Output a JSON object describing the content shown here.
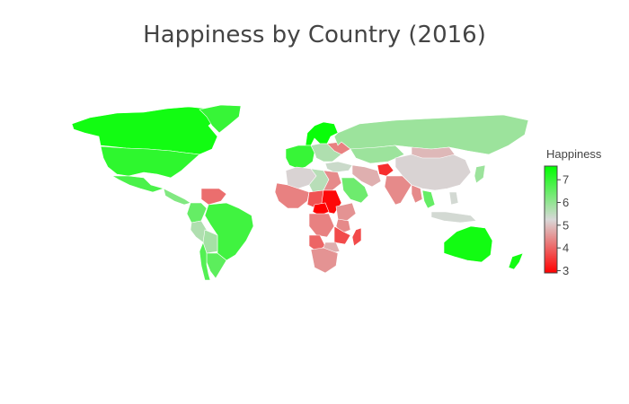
{
  "chart_data": {
    "type": "choropleth",
    "title": "Happiness by Country (2016)",
    "colorbar": {
      "title": "Happiness",
      "ticks": [
        3,
        4,
        5,
        6,
        7
      ],
      "range": [
        2.9,
        7.6
      ],
      "colorscale": [
        [
          0.0,
          "#ff0000"
        ],
        [
          0.5,
          "#d8d8d8"
        ],
        [
          1.0,
          "#00ff00"
        ]
      ]
    },
    "regions": [
      {
        "name": "Canada",
        "value": 7.4
      },
      {
        "name": "United States",
        "value": 7.1
      },
      {
        "name": "Mexico",
        "value": 6.8
      },
      {
        "name": "Greenland",
        "value": 7.0
      },
      {
        "name": "Central America",
        "value": 6.2
      },
      {
        "name": "Colombia",
        "value": 6.5
      },
      {
        "name": "Venezuela",
        "value": 4.1
      },
      {
        "name": "Brazil",
        "value": 6.9
      },
      {
        "name": "Peru",
        "value": 5.7
      },
      {
        "name": "Bolivia",
        "value": 5.8
      },
      {
        "name": "Argentina",
        "value": 6.6
      },
      {
        "name": "Chile",
        "value": 6.7
      },
      {
        "name": "Scandinavia",
        "value": 7.5
      },
      {
        "name": "Western Europe",
        "value": 7.0
      },
      {
        "name": "Eastern Europe",
        "value": 5.7
      },
      {
        "name": "Ukraine",
        "value": 4.3
      },
      {
        "name": "Russia",
        "value": 5.9
      },
      {
        "name": "Kazakhstan",
        "value": 5.9
      },
      {
        "name": "Turkey",
        "value": 5.4
      },
      {
        "name": "Iran",
        "value": 4.8
      },
      {
        "name": "Saudi Arabia",
        "value": 6.4
      },
      {
        "name": "Afghanistan",
        "value": 3.4
      },
      {
        "name": "India",
        "value": 4.4
      },
      {
        "name": "China",
        "value": 5.2
      },
      {
        "name": "Mongolia",
        "value": 4.9
      },
      {
        "name": "Japan",
        "value": 5.9
      },
      {
        "name": "Myanmar",
        "value": 4.4
      },
      {
        "name": "Thailand",
        "value": 6.5
      },
      {
        "name": "Indonesia",
        "value": 5.3
      },
      {
        "name": "Philippines",
        "value": 5.3
      },
      {
        "name": "North Africa",
        "value": 5.2
      },
      {
        "name": "Libya",
        "value": 5.6
      },
      {
        "name": "Egypt",
        "value": 4.4
      },
      {
        "name": "West Africa",
        "value": 4.3
      },
      {
        "name": "Chad",
        "value": 3.8
      },
      {
        "name": "Sudan",
        "value": 3.0
      },
      {
        "name": "Ethiopia",
        "value": 4.5
      },
      {
        "name": "Kenya",
        "value": 4.4
      },
      {
        "name": "Central African Republic",
        "value": 2.9
      },
      {
        "name": "DR Congo",
        "value": 4.3
      },
      {
        "name": "Tanzania",
        "value": 3.7
      },
      {
        "name": "Angola",
        "value": 4.0
      },
      {
        "name": "Zambia",
        "value": 4.8
      },
      {
        "name": "Southern Africa",
        "value": 4.5
      },
      {
        "name": "Madagascar",
        "value": 3.7
      },
      {
        "name": "Australia",
        "value": 7.4
      },
      {
        "name": "New Zealand",
        "value": 7.4
      }
    ]
  }
}
